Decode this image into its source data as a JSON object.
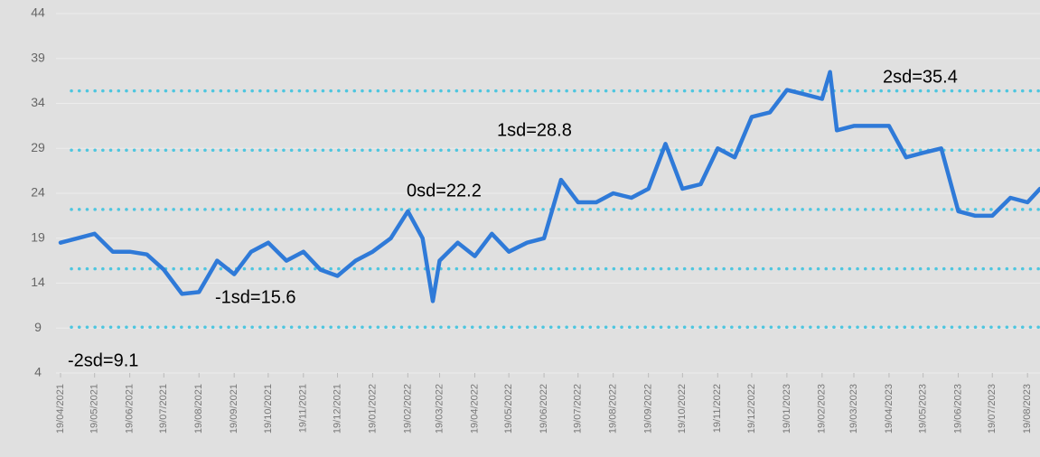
{
  "chart_data": {
    "type": "line",
    "x": [
      "19/04/2021",
      "04/05/2021",
      "19/05/2021",
      "04/06/2021",
      "19/06/2021",
      "04/07/2021",
      "19/07/2021",
      "04/08/2021",
      "19/08/2021",
      "04/09/2021",
      "19/09/2021",
      "04/10/2021",
      "19/10/2021",
      "04/11/2021",
      "19/11/2021",
      "04/12/2021",
      "19/12/2021",
      "04/01/2022",
      "19/01/2022",
      "04/02/2022",
      "19/02/2022",
      "04/03/2022",
      "13/03/2022",
      "19/03/2022",
      "04/04/2022",
      "19/04/2022",
      "04/05/2022",
      "19/05/2022",
      "04/06/2022",
      "19/06/2022",
      "04/07/2022",
      "19/07/2022",
      "04/08/2022",
      "19/08/2022",
      "04/09/2022",
      "19/09/2022",
      "04/10/2022",
      "19/10/2022",
      "04/11/2022",
      "19/11/2022",
      "04/12/2022",
      "19/12/2022",
      "04/01/2023",
      "19/01/2023",
      "04/02/2023",
      "19/02/2023",
      "26/02/2023",
      "04/03/2023",
      "19/03/2023",
      "04/04/2023",
      "19/04/2023",
      "04/05/2023",
      "19/05/2023",
      "04/06/2023",
      "19/06/2023",
      "04/07/2023",
      "19/07/2023",
      "04/08/2023",
      "19/08/2023",
      "30/08/2023"
    ],
    "series": [
      {
        "color": "#2f7ad8",
        "values": [
          18.5,
          19,
          19.5,
          17.5,
          17.5,
          17.2,
          15.5,
          12.8,
          13,
          16.5,
          15,
          17.5,
          18.5,
          16.5,
          17.5,
          15.5,
          14.8,
          16.5,
          17.5,
          19,
          22,
          19,
          12,
          16.5,
          18.5,
          17,
          19.5,
          17.5,
          18.5,
          19,
          25.5,
          23,
          23,
          24,
          23.5,
          24.5,
          29.5,
          24.5,
          25,
          29,
          28,
          32.5,
          33,
          35.5,
          35,
          34.5,
          37.5,
          31,
          31.5,
          31.5,
          31.5,
          28,
          28.5,
          29,
          22,
          21.5,
          21.5,
          23.5,
          23,
          24.5
        ]
      }
    ],
    "reference_lines": [
      {
        "value": 9.1,
        "label": "-2sd=9.1"
      },
      {
        "value": 15.6,
        "label": "-1sd=15.6"
      },
      {
        "value": 22.2,
        "label": "0sd=22.2"
      },
      {
        "value": 28.8,
        "label": "1sd=28.8"
      },
      {
        "value": 35.4,
        "label": "2sd=35.4"
      }
    ],
    "reference_color": "#4ec6df",
    "xlim": [
      "19/04/2021",
      "30/08/2023"
    ],
    "xticks": [
      "19/04/2021",
      "19/05/2021",
      "19/06/2021",
      "19/07/2021",
      "19/08/2021",
      "19/09/2021",
      "19/10/2021",
      "19/11/2021",
      "19/12/2021",
      "19/01/2022",
      "19/02/2022",
      "19/03/2022",
      "19/04/2022",
      "19/05/2022",
      "19/06/2022",
      "19/07/2022",
      "19/08/2022",
      "19/09/2022",
      "19/10/2022",
      "19/11/2022",
      "19/12/2022",
      "19/01/2023",
      "19/02/2023",
      "19/03/2023",
      "19/04/2023",
      "19/05/2023",
      "19/06/2023",
      "19/07/2023",
      "19/08/2023"
    ],
    "ylim": [
      4,
      44
    ],
    "yticks": [
      4,
      9,
      14,
      19,
      24,
      29,
      34,
      39,
      44
    ],
    "grid": true
  }
}
